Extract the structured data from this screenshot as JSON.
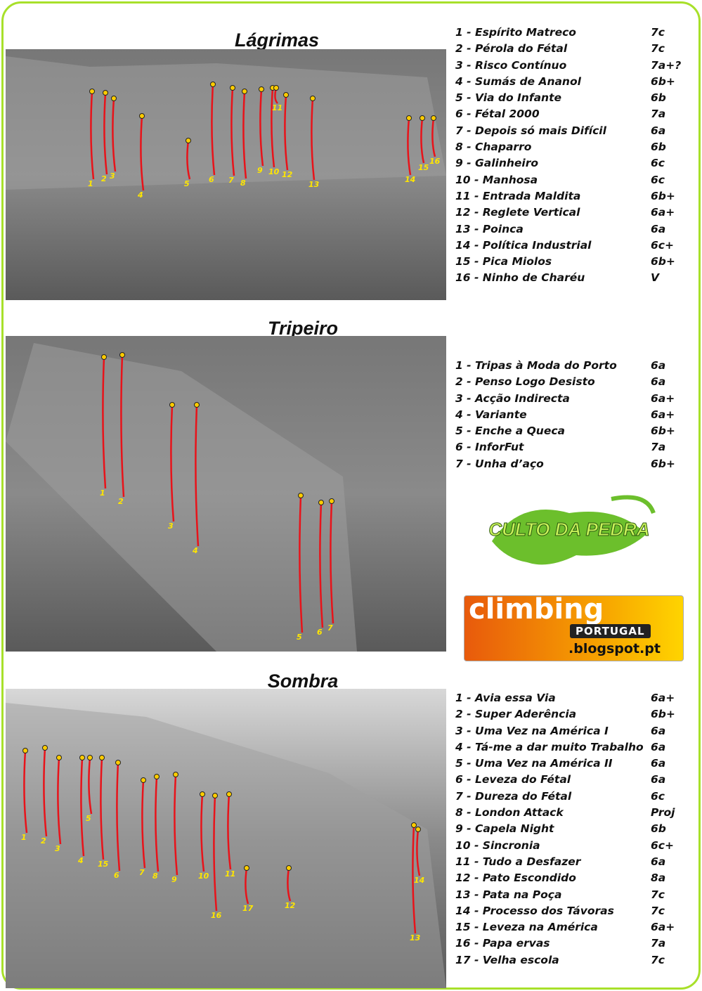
{
  "sections": [
    {
      "title": "Lágrimas",
      "routes": [
        {
          "name": "1 - Espírito Matreco",
          "grade": "7c"
        },
        {
          "name": "2 - Pérola do Fétal",
          "grade": "7c"
        },
        {
          "name": "3 - Risco Contínuo",
          "grade": "7a+?"
        },
        {
          "name": "4 - Sumás de Ananol",
          "grade": "6b+"
        },
        {
          "name": "5 - Via do Infante",
          "grade": "6b"
        },
        {
          "name": "6 - Fétal 2000",
          "grade": "7a"
        },
        {
          "name": "7 - Depois só mais Difícil",
          "grade": "6a"
        },
        {
          "name": "8 - Chaparro",
          "grade": "6b"
        },
        {
          "name": "9 - Galinheiro",
          "grade": "6c"
        },
        {
          "name": "10 - Manhosa",
          "grade": "6c"
        },
        {
          "name": "11 - Entrada Maldita",
          "grade": "6b+"
        },
        {
          "name": "12 - Reglete Vertical",
          "grade": "6a+"
        },
        {
          "name": "13 - Poinca",
          "grade": "6a"
        },
        {
          "name": "14 - Política Industrial",
          "grade": "6c+"
        },
        {
          "name": "15 - Pica Miolos",
          "grade": "6b+"
        },
        {
          "name": "16 - Ninho de Charéu",
          "grade": "V"
        }
      ],
      "photo_labels": [
        "1",
        "2",
        "3",
        "4",
        "5",
        "6",
        "7",
        "8",
        "9",
        "10",
        "11",
        "12",
        "13",
        "14",
        "15",
        "16"
      ]
    },
    {
      "title": "Tripeiro",
      "routes": [
        {
          "name": "1 - Tripas à Moda do Porto",
          "grade": "6a"
        },
        {
          "name": "2 - Penso Logo Desisto",
          "grade": "6a"
        },
        {
          "name": "3 - Acção Indirecta",
          "grade": "6a+"
        },
        {
          "name": "4 - Variante",
          "grade": "6a+"
        },
        {
          "name": "5 - Enche a Queca",
          "grade": "6b+"
        },
        {
          "name": "6 - InforFut",
          "grade": "7a"
        },
        {
          "name": "7 - Unha d’aço",
          "grade": "6b+"
        }
      ],
      "photo_labels": [
        "1",
        "2",
        "3",
        "4",
        "5",
        "6",
        "7"
      ]
    },
    {
      "title": "Sombra",
      "routes": [
        {
          "name": "1 - Avia essa Via",
          "grade": "6a+"
        },
        {
          "name": "2 - Super Aderência",
          "grade": "6b+"
        },
        {
          "name": "3 - Uma Vez na América I",
          "grade": "6a"
        },
        {
          "name": "4 - Tá-me a dar muito Trabalho",
          "grade": "6a"
        },
        {
          "name": "5 - Uma Vez na América II",
          "grade": "6a"
        },
        {
          "name": "6 - Leveza do Fétal",
          "grade": "6a"
        },
        {
          "name": "7 - Dureza do Fétal",
          "grade": "6c"
        },
        {
          "name": "8 - London Attack",
          "grade": "Proj"
        },
        {
          "name": "9 - Capela Night",
          "grade": "6b"
        },
        {
          "name": "10 - Sincronia",
          "grade": "6c+"
        },
        {
          "name": "11 - Tudo a Desfazer",
          "grade": "6a"
        },
        {
          "name": "12 - Pato Escondido",
          "grade": "8a"
        },
        {
          "name": "13 - Pata na Poça",
          "grade": "7c"
        },
        {
          "name": "14 - Processo dos Távoras",
          "grade": "7c"
        },
        {
          "name": "15 - Leveza na América",
          "grade": "6a+"
        },
        {
          "name": "16 - Papa ervas",
          "grade": "7a"
        },
        {
          "name": "17 - Velha escola",
          "grade": "7c"
        }
      ],
      "photo_labels": [
        "1",
        "2",
        "3",
        "4",
        "5",
        "15",
        "6",
        "7",
        "8",
        "9",
        "10",
        "11",
        "16",
        "17",
        "12",
        "14",
        "13"
      ]
    }
  ],
  "logos": {
    "culto": "CULTO DA PEDRA",
    "climbing": "climbing",
    "portugal": "PORTUGAL",
    "blog": ".blogspot.pt"
  }
}
